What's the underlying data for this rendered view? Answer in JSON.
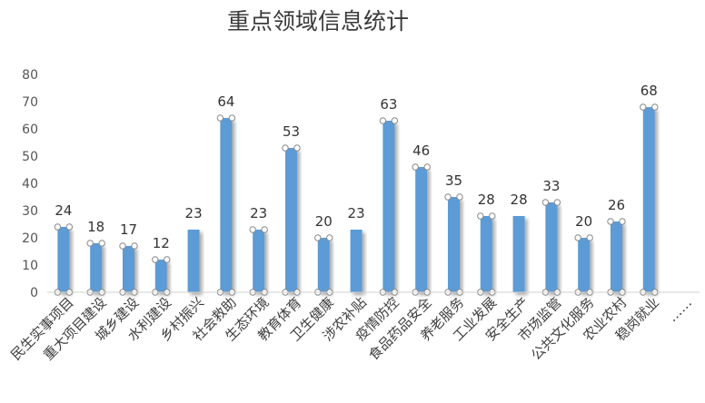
{
  "chart_data": {
    "type": "bar",
    "title": "重点领域信息统计",
    "categories": [
      "民生实事项目",
      "重大项目建设",
      "城乡建设",
      "水利建设",
      "乡村振兴",
      "社会救助",
      "生态环境",
      "教育体育",
      "卫生健康",
      "涉农补贴",
      "疫情防控",
      "食品药品安全",
      "养老服务",
      "工业发展",
      "安全生产",
      "市场监管",
      "公共文化服务",
      "农业农村",
      "稳岗就业",
      "……"
    ],
    "values": [
      24,
      18,
      17,
      12,
      23,
      64,
      23,
      53,
      20,
      23,
      63,
      46,
      35,
      28,
      28,
      33,
      20,
      26,
      68,
      null
    ],
    "data_labels": [
      "24",
      "18",
      "17",
      "12",
      "23",
      "64",
      "23",
      "53",
      "20",
      "23",
      "63",
      "46",
      "35",
      "28",
      "28",
      "33",
      "20",
      "26",
      "68",
      ""
    ],
    "yticks": [
      "0",
      "10",
      "20",
      "30",
      "40",
      "50",
      "60",
      "70",
      "80"
    ],
    "ylim": [
      0,
      80
    ],
    "xlabel": "",
    "ylabel": "",
    "bar_color": "#5b9bd5",
    "grid": false,
    "legend": "none"
  }
}
